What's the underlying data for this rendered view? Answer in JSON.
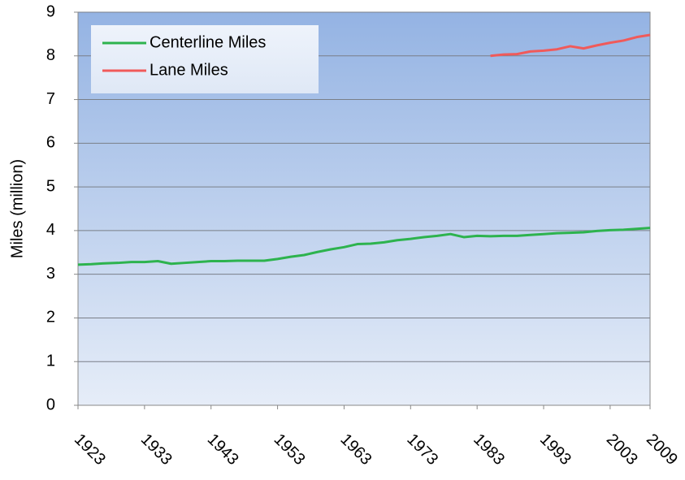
{
  "chart_data": {
    "type": "line",
    "y_label": "Miles (million)",
    "x": [
      1923,
      1925,
      1927,
      1929,
      1931,
      1933,
      1935,
      1937,
      1939,
      1941,
      1943,
      1945,
      1947,
      1949,
      1951,
      1953,
      1955,
      1957,
      1959,
      1961,
      1963,
      1965,
      1967,
      1969,
      1971,
      1973,
      1975,
      1977,
      1979,
      1981,
      1983,
      1985,
      1987,
      1989,
      1991,
      1993,
      1995,
      1997,
      1999,
      2001,
      2003,
      2005,
      2007,
      2009
    ],
    "series": [
      {
        "name": "Centerline Miles",
        "color": "#2db34e",
        "values": [
          3.22,
          3.23,
          3.25,
          3.26,
          3.28,
          3.28,
          3.3,
          3.24,
          3.26,
          3.28,
          3.3,
          3.3,
          3.31,
          3.31,
          3.31,
          3.35,
          3.4,
          3.44,
          3.51,
          3.57,
          3.62,
          3.69,
          3.7,
          3.73,
          3.78,
          3.81,
          3.85,
          3.88,
          3.92,
          3.85,
          3.88,
          3.87,
          3.88,
          3.88,
          3.9,
          3.92,
          3.94,
          3.95,
          3.96,
          3.99,
          4.01,
          4.02,
          4.04,
          4.06
        ]
      },
      {
        "name": "Lane Miles",
        "color": "#f05a5a",
        "values": [
          null,
          null,
          null,
          null,
          null,
          null,
          null,
          null,
          null,
          null,
          null,
          null,
          null,
          null,
          null,
          null,
          null,
          null,
          null,
          null,
          null,
          null,
          null,
          null,
          null,
          null,
          null,
          null,
          null,
          null,
          null,
          8.0,
          8.03,
          8.04,
          8.1,
          8.12,
          8.15,
          8.22,
          8.17,
          8.24,
          8.3,
          8.35,
          8.43,
          8.48
        ]
      }
    ],
    "xlim": [
      1923,
      2009
    ],
    "xticks": [
      1923,
      1933,
      1943,
      1953,
      1963,
      1973,
      1983,
      1993,
      2003,
      2009
    ],
    "ylim": [
      0,
      9
    ],
    "yticks": [
      0,
      1,
      2,
      3,
      4,
      5,
      6,
      7,
      8,
      9
    ],
    "grid": true,
    "legend": "upper-left"
  }
}
